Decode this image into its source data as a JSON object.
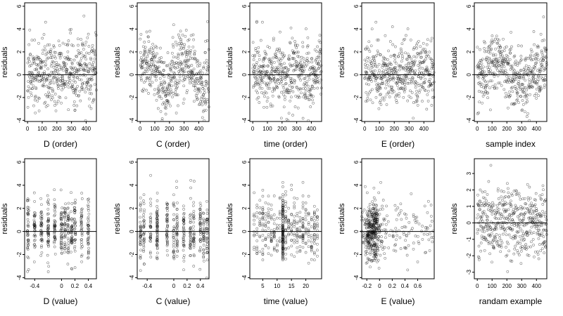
{
  "chart_data": [
    {
      "type": "scatter",
      "xlabel": "D (order)",
      "ylabel": "residuals",
      "xlim": [
        -20,
        470
      ],
      "ylim": [
        -4.1,
        6.3
      ],
      "xticks": [
        0,
        100,
        200,
        300,
        400
      ],
      "yticks": [
        -4,
        -2,
        0,
        2,
        4,
        6
      ],
      "hline": 0,
      "n_points": 470,
      "x_kind": "index",
      "pattern": "order_D",
      "seed": 11
    },
    {
      "type": "scatter",
      "xlabel": "C (order)",
      "ylabel": "residuals",
      "xlim": [
        -20,
        470
      ],
      "ylim": [
        -4.1,
        6.3
      ],
      "xticks": [
        0,
        100,
        200,
        300,
        400
      ],
      "yticks": [
        -4,
        -2,
        0,
        2,
        4,
        6
      ],
      "hline": 0,
      "n_points": 470,
      "x_kind": "index",
      "pattern": "order_C",
      "seed": 23
    },
    {
      "type": "scatter",
      "xlabel": "time (order)",
      "ylabel": "residuals",
      "xlim": [
        -20,
        470
      ],
      "ylim": [
        -4.1,
        6.3
      ],
      "xticks": [
        0,
        100,
        200,
        300,
        400
      ],
      "yticks": [
        -4,
        -2,
        0,
        2,
        4,
        6
      ],
      "hline": 0,
      "n_points": 470,
      "x_kind": "index",
      "pattern": "order_time",
      "seed": 37
    },
    {
      "type": "scatter",
      "xlabel": "E (order)",
      "ylabel": "residuals",
      "xlim": [
        -20,
        470
      ],
      "ylim": [
        -4.1,
        6.3
      ],
      "xticks": [
        0,
        100,
        200,
        300,
        400
      ],
      "yticks": [
        -4,
        -2,
        0,
        2,
        4,
        6
      ],
      "hline": 0,
      "n_points": 470,
      "x_kind": "index",
      "pattern": "order_E",
      "seed": 41
    },
    {
      "type": "scatter",
      "xlabel": "sample index",
      "ylabel": "residuals",
      "xlim": [
        -20,
        470
      ],
      "ylim": [
        -4.1,
        6.3
      ],
      "xticks": [
        0,
        100,
        200,
        300,
        400
      ],
      "yticks": [
        -4,
        -2,
        0,
        2,
        4,
        6
      ],
      "hline": 0,
      "n_points": 470,
      "x_kind": "index",
      "pattern": "sample",
      "seed": 53
    },
    {
      "type": "scatter",
      "xlabel": "D (value)",
      "ylabel": "residuals",
      "xlim": [
        -0.55,
        0.52
      ],
      "ylim": [
        -4.1,
        6.3
      ],
      "xticks": [
        -0.4,
        0,
        0.2,
        0.4
      ],
      "yticks": [
        -4,
        -2,
        0,
        2,
        4,
        6
      ],
      "hline": 0,
      "n_points": 470,
      "x_kind": "value",
      "pattern": "value_D",
      "seed": 61
    },
    {
      "type": "scatter",
      "xlabel": "C (value)",
      "ylabel": "residuals",
      "xlim": [
        -0.55,
        0.53
      ],
      "ylim": [
        -4.1,
        6.3
      ],
      "xticks": [
        -0.4,
        0,
        0.2,
        0.4
      ],
      "yticks": [
        -4,
        -2,
        0,
        2,
        4,
        6
      ],
      "hline": 0,
      "n_points": 470,
      "x_kind": "value",
      "pattern": "value_C",
      "seed": 71
    },
    {
      "type": "scatter",
      "xlabel": "time (value)",
      "ylabel": "residuals",
      "xlim": [
        0.5,
        25.5
      ],
      "ylim": [
        -4.1,
        6.3
      ],
      "xticks": [
        5,
        10,
        15,
        20
      ],
      "yticks": [
        -4,
        -2,
        0,
        2,
        4,
        6
      ],
      "hline": 0,
      "n_points": 470,
      "x_kind": "value",
      "pattern": "value_time",
      "seed": 83
    },
    {
      "type": "scatter",
      "xlabel": "E (value)",
      "ylabel": "residuals",
      "xlim": [
        -0.28,
        0.86
      ],
      "ylim": [
        -4.1,
        6.3
      ],
      "xticks": [
        -0.2,
        0,
        0.2,
        0.4,
        0.6
      ],
      "yticks": [
        -4,
        -2,
        0,
        2,
        4,
        6
      ],
      "hline": 0,
      "n_points": 470,
      "x_kind": "value",
      "pattern": "value_E",
      "seed": 97
    },
    {
      "type": "scatter",
      "xlabel": "randam example",
      "ylabel": "residuals",
      "xlim": [
        -20,
        470
      ],
      "ylim": [
        -3.4,
        3.9
      ],
      "xticks": [
        0,
        100,
        200,
        300,
        400
      ],
      "yticks": [
        -3,
        -2,
        -1,
        0,
        1,
        2,
        3
      ],
      "hline": 0,
      "n_points": 470,
      "x_kind": "index",
      "pattern": "random",
      "seed": 101
    }
  ]
}
